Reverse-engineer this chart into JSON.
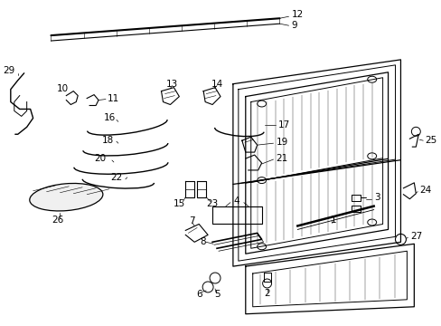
{
  "bg_color": "#ffffff",
  "fig_width": 4.89,
  "fig_height": 3.6,
  "dpi": 100,
  "line_color": "#000000",
  "label_fontsize": 7.5
}
